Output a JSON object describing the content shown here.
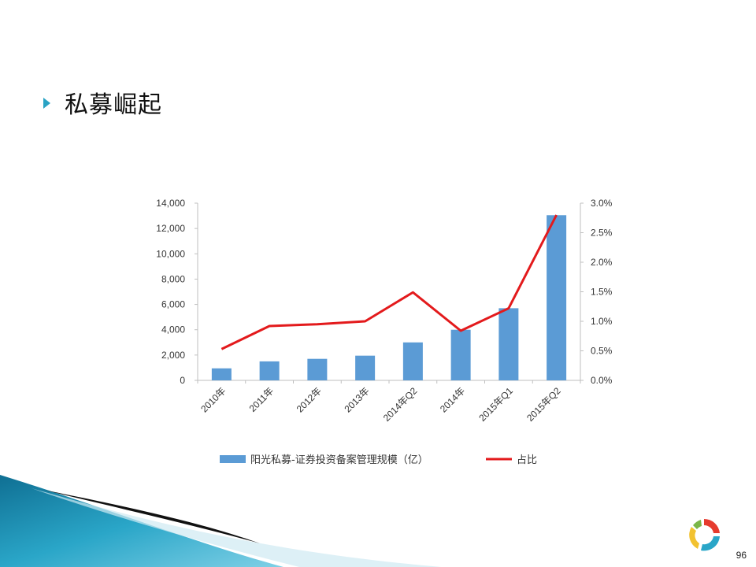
{
  "slide": {
    "title": "私募崛起",
    "page_number": "96"
  },
  "colors": {
    "bar": "#5b9bd5",
    "line": "#e31a1c",
    "bullet": "#2aa3c4",
    "axis": "#bfbfbf"
  },
  "chart_data": {
    "type": "bar",
    "categories": [
      "2010年",
      "2011年",
      "2012年",
      "2013年",
      "2014年Q2",
      "2014年",
      "2015年Q1",
      "2015年Q2"
    ],
    "series": [
      {
        "name": "阳光私募-证券投资备案管理规模（亿）",
        "type": "bar",
        "axis": "left",
        "values": [
          950,
          1500,
          1700,
          1950,
          3000,
          4000,
          5700,
          13050
        ]
      },
      {
        "name": "占比",
        "type": "line",
        "axis": "right",
        "values": [
          0.53,
          0.92,
          0.95,
          1.0,
          1.49,
          0.84,
          1.22,
          2.8
        ]
      }
    ],
    "y_left": {
      "ylim": [
        0,
        14000
      ],
      "ticks": [
        "0",
        "2,000",
        "4,000",
        "6,000",
        "8,000",
        "10,000",
        "12,000",
        "14,000"
      ]
    },
    "y_right": {
      "ylim": [
        0,
        3.0
      ],
      "ticks": [
        "0.0%",
        "0.5%",
        "1.0%",
        "1.5%",
        "2.0%",
        "2.5%",
        "3.0%"
      ]
    },
    "legend_position": "bottom",
    "grid": false
  }
}
